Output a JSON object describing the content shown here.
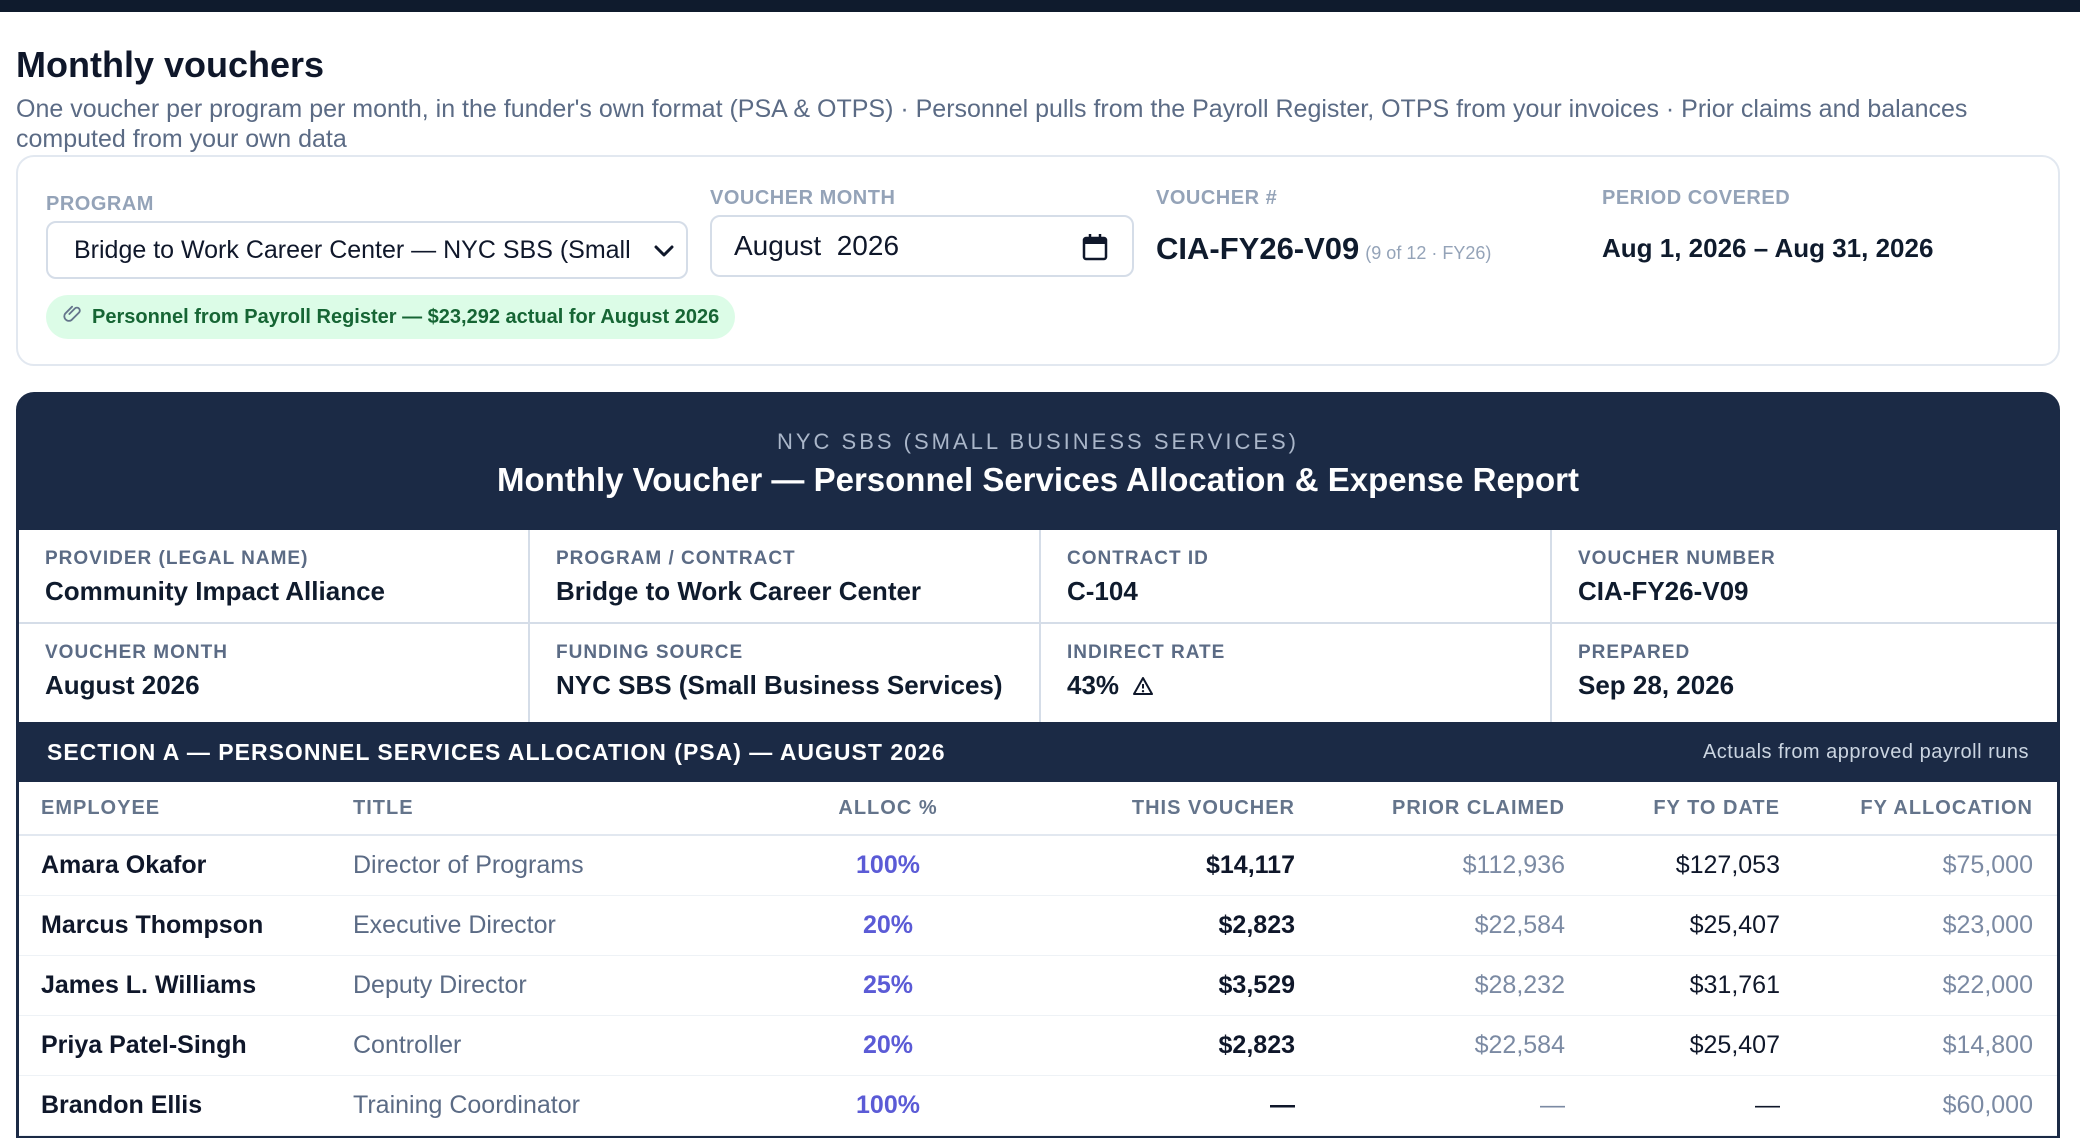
{
  "header": {
    "title": "Monthly vouchers",
    "subtitle": "One voucher per program per month, in the funder's own format (PSA & OTPS) · Personnel pulls from the Payroll Register, OTPS from your invoices · Prior claims and balances computed from your own data"
  },
  "controls": {
    "program_label": "PROGRAM",
    "program_value": "Bridge to Work Career Center — NYC SBS (Small",
    "month_label": "VOUCHER MONTH",
    "month_value": "August  2026",
    "voucher_label": "VOUCHER #",
    "voucher_value": "CIA-FY26-V09",
    "voucher_of": "(9 of 12 · FY26)",
    "period_label": "PERIOD COVERED",
    "period_value": "Aug 1, 2026 – Aug 31, 2026",
    "payroll_pill": "Personnel from Payroll Register — $23,292 actual for August 2026"
  },
  "voucher": {
    "funder": "NYC SBS (SMALL BUSINESS SERVICES)",
    "title": "Monthly Voucher — Personnel Services Allocation & Expense Report",
    "info": [
      {
        "label": "PROVIDER (LEGAL NAME)",
        "value": "Community Impact Alliance"
      },
      {
        "label": "PROGRAM / CONTRACT",
        "value": "Bridge to Work Career Center"
      },
      {
        "label": "CONTRACT ID",
        "value": "C-104"
      },
      {
        "label": "VOUCHER NUMBER",
        "value": "CIA-FY26-V09"
      },
      {
        "label": "VOUCHER MONTH",
        "value": "August 2026"
      },
      {
        "label": "FUNDING SOURCE",
        "value": "NYC SBS (Small Business Services)"
      },
      {
        "label": "INDIRECT RATE",
        "value": "43%"
      },
      {
        "label": "PREPARED",
        "value": "Sep 28, 2026"
      }
    ],
    "section_a_title": "SECTION A — PERSONNEL SERVICES ALLOCATION (PSA) — AUGUST 2026",
    "section_a_note": "Actuals from approved payroll runs",
    "columns": [
      "EMPLOYEE",
      "TITLE",
      "ALLOC %",
      "THIS VOUCHER",
      "PRIOR CLAIMED",
      "FY TO DATE",
      "FY ALLOCATION"
    ],
    "rows": [
      {
        "employee": "Amara Okafor",
        "title": "Director of Programs",
        "alloc": "100%",
        "this": "$14,117",
        "prior": "$112,936",
        "fytd": "$127,053",
        "fyalloc": "$75,000"
      },
      {
        "employee": "Marcus Thompson",
        "title": "Executive Director",
        "alloc": "20%",
        "this": "$2,823",
        "prior": "$22,584",
        "fytd": "$25,407",
        "fyalloc": "$23,000"
      },
      {
        "employee": "James L. Williams",
        "title": "Deputy Director",
        "alloc": "25%",
        "this": "$3,529",
        "prior": "$28,232",
        "fytd": "$31,761",
        "fyalloc": "$22,000"
      },
      {
        "employee": "Priya Patel-Singh",
        "title": "Controller",
        "alloc": "20%",
        "this": "$2,823",
        "prior": "$22,584",
        "fytd": "$25,407",
        "fyalloc": "$14,800"
      },
      {
        "employee": "Brandon Ellis",
        "title": "Training Coordinator",
        "alloc": "100%",
        "this": "—",
        "prior": "—",
        "fytd": "—",
        "fyalloc": "$60,000"
      }
    ]
  },
  "icons": {
    "paperclip": "paperclip-icon",
    "calendar": "calendar-icon",
    "chevron": "chevron-down-icon",
    "warning": "warning-icon"
  },
  "colors": {
    "navy": "#1b2a45",
    "accent_alloc": "#5b5bd6",
    "pill_bg": "#dcfce7",
    "pill_text": "#166534"
  }
}
